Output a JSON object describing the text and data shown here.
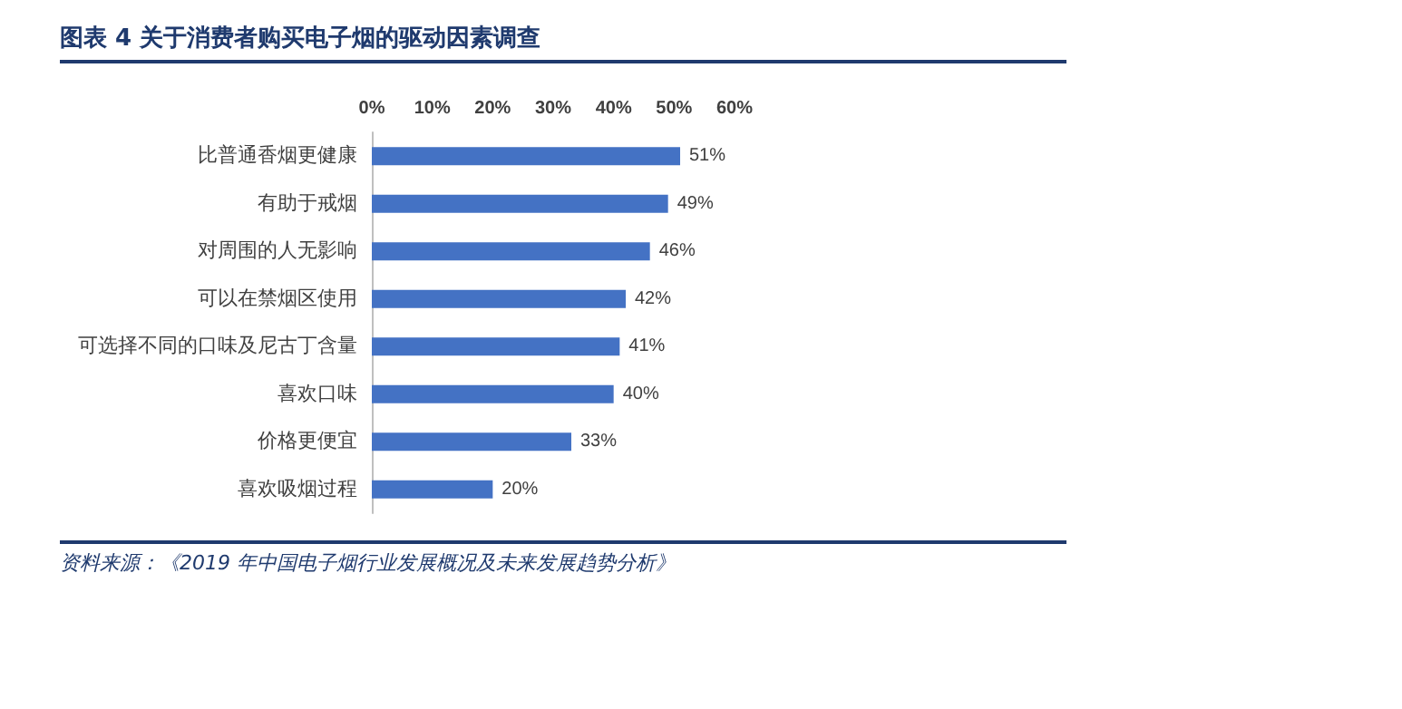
{
  "chart_data": {
    "type": "bar",
    "orientation": "horizontal",
    "title": "图表 4  关于消费者购买电子烟的驱动因素调查",
    "categories": [
      "比普通香烟更健康",
      "有助于戒烟",
      "对周围的人无影响",
      "可以在禁烟区使用",
      "可选择不同的口味及尼古丁含量",
      "喜欢口味",
      "价格更便宜",
      "喜欢吸烟过程"
    ],
    "values": [
      51,
      49,
      46,
      42,
      41,
      40,
      33,
      20
    ],
    "value_labels": [
      "51%",
      "49%",
      "46%",
      "42%",
      "41%",
      "40%",
      "33%",
      "20%"
    ],
    "color": "#4472c4",
    "xlim": [
      0,
      60
    ],
    "xticks": [
      {
        "value": 0,
        "label": "0%"
      },
      {
        "value": 10,
        "label": "10%"
      },
      {
        "value": 20,
        "label": "20%"
      },
      {
        "value": 30,
        "label": "30%"
      },
      {
        "value": 40,
        "label": "40%"
      },
      {
        "value": 50,
        "label": "50%"
      },
      {
        "value": 60,
        "label": "60%"
      }
    ],
    "grid": false,
    "annotations": [
      "资料来源：《2019 年中国电子烟行业发展概况及未来发展趋势分析》"
    ]
  }
}
